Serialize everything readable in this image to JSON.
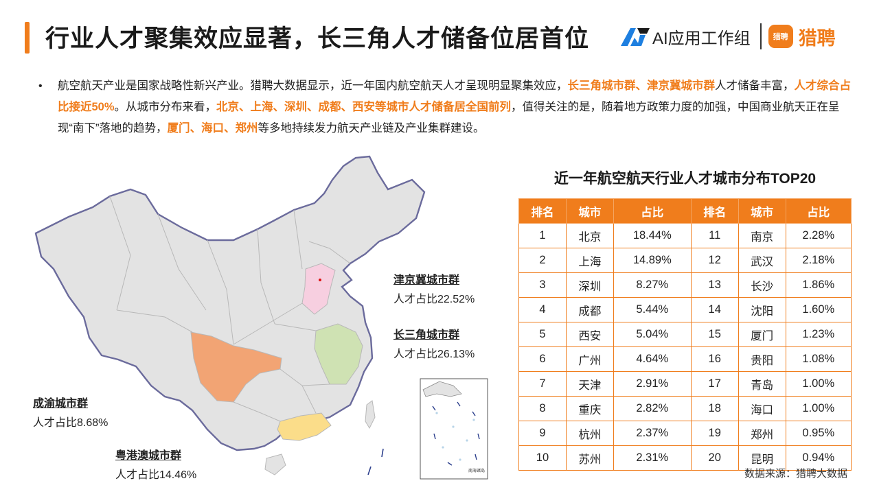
{
  "header": {
    "title": "行业人才聚集效应显著，长三角人才储备位居首位",
    "brand_ai": "AI应用工作组",
    "brand_liepin_icon": "猎聘",
    "brand_liepin": "猎聘"
  },
  "intro": {
    "bullet": "•",
    "p1": "航空航天产业是国家战略性新兴产业。猎聘大数据显示，近一年国内航空航天人才呈现明显聚集效应，",
    "h1": "长三角城市群、津京冀城市群",
    "p2": "人才储备丰富，",
    "h2": "人才综合占比接近50%",
    "p3": "。从城市分布来看，",
    "h3": "北京、上海、深圳、成都、西安等城市人才储备居全国前列",
    "p4": "，值得关注的是，随着地方政策力度的加强，中国商业航天正在呈现“南下”落地的趋势，",
    "h4": "厦门、海口、郑州",
    "p5": "等多地持续发力航天产业链及产业集群建设。"
  },
  "map": {
    "colors": {
      "land": "#e3e3e3",
      "border": "#b8b8b8",
      "outline": "#6b6b9c",
      "jjj": "#f7cfe0",
      "yrd": "#cfe2b3",
      "cy": "#f2a474",
      "gba": "#fbdd8a"
    },
    "labels": {
      "jjj": {
        "name": "津京冀城市群",
        "value": "人才占比22.52%"
      },
      "yrd": {
        "name": "长三角城市群",
        "value": "人才占比26.13%"
      },
      "cy": {
        "name": "成渝城市群",
        "value": "人才占比8.68%"
      },
      "gba": {
        "name": "粤港澳城市群",
        "value": "人才占比14.46%"
      }
    },
    "inset_label": "南海诸岛"
  },
  "table": {
    "title": "近一年航空航天行业人才城市分布TOP20",
    "headers": [
      "排名",
      "城市",
      "占比",
      "排名",
      "城市",
      "占比"
    ],
    "rows": [
      [
        "1",
        "北京",
        "18.44%",
        "11",
        "南京",
        "2.28%"
      ],
      [
        "2",
        "上海",
        "14.89%",
        "12",
        "武汉",
        "2.18%"
      ],
      [
        "3",
        "深圳",
        "8.27%",
        "13",
        "长沙",
        "1.86%"
      ],
      [
        "4",
        "成都",
        "5.44%",
        "14",
        "沈阳",
        "1.60%"
      ],
      [
        "5",
        "西安",
        "5.04%",
        "15",
        "厦门",
        "1.23%"
      ],
      [
        "6",
        "广州",
        "4.64%",
        "16",
        "贵阳",
        "1.08%"
      ],
      [
        "7",
        "天津",
        "2.91%",
        "17",
        "青岛",
        "1.00%"
      ],
      [
        "8",
        "重庆",
        "2.82%",
        "18",
        "海口",
        "1.00%"
      ],
      [
        "9",
        "杭州",
        "2.37%",
        "19",
        "郑州",
        "0.95%"
      ],
      [
        "10",
        "苏州",
        "2.31%",
        "20",
        "昆明",
        "0.94%"
      ]
    ]
  },
  "source": "数据来源：猎聘大数据"
}
